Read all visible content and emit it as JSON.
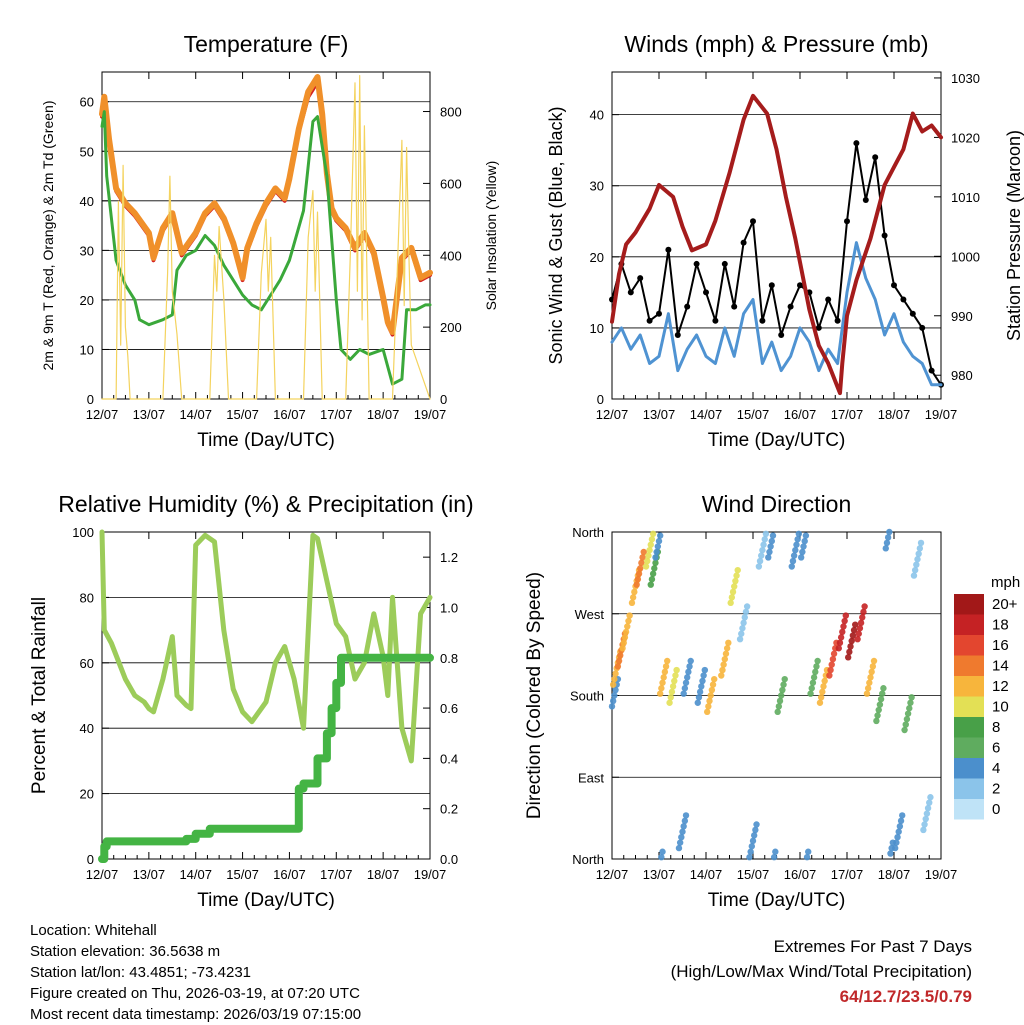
{
  "chart_data": [
    {
      "type": "line",
      "title": "Temperature (F)",
      "xlabel": "Time (Day/UTC)",
      "ylabel": "2m & 9m T (Red, Orange) & 2m Td (Green)",
      "ylabel_right": "Solar Insolation (Yellow)",
      "x_ticks": [
        "12/07",
        "13/07",
        "14/07",
        "15/07",
        "16/07",
        "17/07",
        "18/07",
        "19/07"
      ],
      "ylim": [
        0,
        66
      ],
      "yticks": [
        0,
        10,
        20,
        30,
        40,
        50,
        60
      ],
      "ylim_right": [
        0,
        910
      ],
      "yticks_right": [
        0,
        200,
        400,
        600,
        800
      ],
      "grid": true,
      "series": [
        {
          "name": "2m T",
          "color": "#d42222",
          "axis": "left",
          "x": [
            0,
            0.05,
            0.15,
            0.3,
            0.5,
            0.7,
            1.0,
            1.1,
            1.3,
            1.5,
            1.7,
            1.85,
            2.0,
            2.2,
            2.4,
            2.6,
            2.8,
            3.0,
            3.1,
            3.3,
            3.5,
            3.7,
            3.9,
            4.0,
            4.2,
            4.4,
            4.6,
            4.7,
            4.8,
            4.9,
            5.0,
            5.2,
            5.4,
            5.6,
            5.8,
            6.0,
            6.1,
            6.2,
            6.4,
            6.6,
            6.8,
            7.0
          ],
          "values": [
            57,
            60,
            52,
            42,
            39,
            37,
            33,
            28,
            34,
            37,
            29,
            31,
            33,
            37,
            39,
            36,
            31,
            24,
            30,
            35,
            39,
            42,
            40,
            44,
            54,
            61,
            64,
            57,
            45,
            38,
            36,
            34,
            30,
            33,
            29,
            20,
            15,
            13,
            28,
            30,
            24,
            25
          ]
        },
        {
          "name": "9m T",
          "color": "#f0902a",
          "axis": "left",
          "x": [
            0,
            0.05,
            0.15,
            0.3,
            0.5,
            0.7,
            1.0,
            1.1,
            1.3,
            1.5,
            1.7,
            1.85,
            2.0,
            2.2,
            2.4,
            2.6,
            2.8,
            3.0,
            3.1,
            3.3,
            3.5,
            3.7,
            3.9,
            4.0,
            4.2,
            4.4,
            4.6,
            4.7,
            4.8,
            4.9,
            5.0,
            5.2,
            5.4,
            5.6,
            5.8,
            6.0,
            6.1,
            6.2,
            6.4,
            6.6,
            6.8,
            7.0
          ],
          "values": [
            57.5,
            61,
            52.5,
            42.5,
            39.5,
            37.5,
            33.5,
            28.5,
            34.5,
            37.5,
            29.5,
            31.5,
            33.5,
            37.5,
            39.5,
            36.5,
            31.5,
            24.5,
            30.5,
            35.5,
            39.5,
            42.5,
            40.5,
            44.5,
            54.5,
            62,
            65,
            57.5,
            45.5,
            38.5,
            36.5,
            34.5,
            30.5,
            33.5,
            29.5,
            20.5,
            15.5,
            13.5,
            28.5,
            30.5,
            24.5,
            25.5
          ]
        },
        {
          "name": "2m Td",
          "color": "#3aa83a",
          "axis": "left",
          "x": [
            0,
            0.05,
            0.1,
            0.3,
            0.5,
            0.7,
            0.8,
            1.0,
            1.3,
            1.5,
            1.6,
            1.8,
            2.0,
            2.2,
            2.4,
            2.6,
            2.8,
            3.0,
            3.2,
            3.4,
            3.6,
            3.8,
            4.0,
            4.3,
            4.5,
            4.6,
            4.8,
            5.0,
            5.1,
            5.3,
            5.5,
            5.7,
            6.0,
            6.2,
            6.4,
            6.5,
            6.7,
            6.9,
            7.0
          ],
          "values": [
            55,
            58,
            45,
            28,
            23,
            20,
            16,
            15,
            16,
            17,
            26,
            29,
            30,
            33,
            31,
            27,
            24,
            21,
            19,
            18,
            21,
            24,
            28,
            38,
            56,
            57,
            45,
            20,
            10,
            8,
            10,
            9,
            10,
            3,
            4,
            18,
            18,
            19,
            19
          ]
        },
        {
          "name": "Solar Insolation",
          "color": "#f4d35e",
          "axis": "right",
          "x": [
            0,
            0.3,
            0.35,
            0.4,
            0.45,
            0.5,
            0.55,
            0.6,
            1.3,
            1.4,
            1.45,
            1.5,
            1.6,
            1.7,
            2.3,
            2.4,
            2.45,
            2.5,
            2.6,
            2.7,
            3.3,
            3.4,
            3.5,
            3.55,
            3.6,
            3.7,
            4.3,
            4.4,
            4.5,
            4.55,
            4.6,
            4.7,
            5.2,
            5.3,
            5.4,
            5.45,
            5.5,
            5.55,
            5.6,
            5.7,
            6.2,
            6.3,
            6.4,
            6.45,
            6.5,
            6.55,
            6.6,
            7.0
          ],
          "values": [
            0,
            0,
            550,
            150,
            650,
            200,
            120,
            0,
            0,
            350,
            620,
            300,
            180,
            0,
            0,
            400,
            300,
            480,
            280,
            0,
            0,
            350,
            500,
            300,
            450,
            0,
            0,
            450,
            580,
            300,
            520,
            0,
            0,
            400,
            880,
            300,
            900,
            220,
            760,
            0,
            0,
            350,
            720,
            260,
            700,
            400,
            150,
            0
          ]
        }
      ]
    },
    {
      "type": "line",
      "title": "Winds (mph) & Pressure (mb)",
      "xlabel": "Time (Day/UTC)",
      "ylabel": "Sonic Wind & Gust (Blue, Black)",
      "ylabel_right": "Station Pressure (Maroon)",
      "x_ticks": [
        "12/07",
        "13/07",
        "14/07",
        "15/07",
        "16/07",
        "17/07",
        "18/07",
        "19/07"
      ],
      "ylim": [
        0,
        46
      ],
      "yticks": [
        0,
        10,
        20,
        30,
        40
      ],
      "ylim_right": [
        976,
        1031
      ],
      "yticks_right": [
        980,
        990,
        1000,
        1010,
        1020,
        1030
      ],
      "grid": true,
      "series": [
        {
          "name": "Sonic Wind",
          "color": "#4f93d2",
          "axis": "left",
          "x": [
            0,
            0.2,
            0.4,
            0.6,
            0.8,
            1.0,
            1.2,
            1.4,
            1.6,
            1.8,
            2.0,
            2.2,
            2.4,
            2.6,
            2.8,
            3.0,
            3.2,
            3.4,
            3.6,
            3.8,
            4.0,
            4.2,
            4.4,
            4.6,
            4.8,
            5.0,
            5.2,
            5.4,
            5.6,
            5.8,
            6.0,
            6.2,
            6.4,
            6.6,
            6.8,
            7.0
          ],
          "values": [
            8,
            10,
            7,
            9,
            5,
            6,
            12,
            4,
            7,
            9,
            6,
            5,
            10,
            6,
            12,
            14,
            5,
            8,
            4,
            6,
            10,
            8,
            4,
            7,
            5,
            15,
            22,
            17,
            14,
            9,
            12,
            8,
            6,
            5,
            2,
            2
          ]
        },
        {
          "name": "Gust",
          "color": "#000000",
          "axis": "left",
          "x": [
            0,
            0.2,
            0.4,
            0.6,
            0.8,
            1.0,
            1.2,
            1.4,
            1.6,
            1.8,
            2.0,
            2.2,
            2.4,
            2.6,
            2.8,
            3.0,
            3.2,
            3.4,
            3.6,
            3.8,
            4.0,
            4.2,
            4.4,
            4.6,
            4.8,
            5.0,
            5.2,
            5.4,
            5.6,
            5.8,
            6.0,
            6.2,
            6.4,
            6.6,
            6.8,
            7.0
          ],
          "values": [
            14,
            19,
            15,
            17,
            11,
            12,
            21,
            9,
            13,
            19,
            15,
            11,
            19,
            13,
            22,
            25,
            11,
            16,
            9,
            13,
            16,
            15,
            10,
            14,
            11,
            25,
            36,
            28,
            34,
            23,
            16,
            14,
            12,
            10,
            4,
            2
          ]
        },
        {
          "name": "Station Pressure",
          "color": "#a51c1c",
          "axis": "right",
          "x": [
            0,
            0.15,
            0.3,
            0.5,
            0.8,
            1.0,
            1.3,
            1.5,
            1.7,
            2.0,
            2.2,
            2.5,
            2.8,
            3.0,
            3.3,
            3.5,
            3.7,
            3.9,
            4.0,
            4.2,
            4.4,
            4.6,
            4.8,
            4.85,
            4.9,
            5.0,
            5.2,
            5.5,
            5.8,
            6.0,
            6.2,
            6.4,
            6.6,
            6.8,
            7.0
          ],
          "values": [
            989,
            997,
            1002,
            1004,
            1008,
            1012,
            1010,
            1005,
            1001,
            1002,
            1006,
            1014,
            1023,
            1027,
            1024,
            1018,
            1010,
            1003,
            999,
            991,
            985,
            982,
            978,
            977,
            982,
            990,
            996,
            1003,
            1012,
            1015,
            1018,
            1024,
            1021,
            1022,
            1020
          ]
        }
      ]
    },
    {
      "type": "line",
      "title": "Relative Humidity (%) & Precipitation (in)",
      "xlabel": "Time (Day/UTC)",
      "ylabel": "Percent & Total Rainfall",
      "x_ticks": [
        "12/07",
        "13/07",
        "14/07",
        "15/07",
        "16/07",
        "17/07",
        "18/07",
        "19/07"
      ],
      "ylim": [
        0,
        100
      ],
      "yticks": [
        0,
        20,
        40,
        60,
        80,
        100
      ],
      "ylim_right": [
        0,
        1.3
      ],
      "yticks_right": [
        0.0,
        0.2,
        0.4,
        0.6,
        0.8,
        1.0,
        1.2
      ],
      "grid": true,
      "series": [
        {
          "name": "Relative Humidity",
          "color": "#9ccc5a",
          "axis": "left",
          "x": [
            0,
            0.05,
            0.2,
            0.5,
            0.7,
            0.9,
            1.0,
            1.1,
            1.3,
            1.5,
            1.6,
            1.8,
            1.9,
            2.0,
            2.2,
            2.4,
            2.6,
            2.8,
            3.0,
            3.2,
            3.5,
            3.7,
            3.9,
            4.1,
            4.3,
            4.5,
            4.6,
            4.8,
            5.0,
            5.2,
            5.4,
            5.6,
            5.8,
            6.0,
            6.1,
            6.2,
            6.4,
            6.6,
            6.8,
            7.0
          ],
          "values": [
            100,
            70,
            66,
            55,
            50,
            48,
            46,
            45,
            55,
            68,
            50,
            47,
            46,
            96,
            99,
            97,
            70,
            52,
            45,
            42,
            48,
            60,
            65,
            55,
            40,
            99,
            98,
            85,
            72,
            68,
            55,
            60,
            75,
            62,
            50,
            80,
            40,
            30,
            75,
            80
          ]
        },
        {
          "name": "Total Precipitation",
          "color": "#44b444",
          "axis": "right",
          "x": [
            0,
            0.05,
            0.1,
            1.6,
            1.8,
            2.0,
            2.3,
            3.0,
            4.0,
            4.2,
            4.3,
            4.5,
            4.6,
            4.8,
            4.9,
            5.0,
            5.1,
            7.0
          ],
          "values": [
            0,
            0.05,
            0.07,
            0.07,
            0.08,
            0.1,
            0.12,
            0.12,
            0.12,
            0.28,
            0.3,
            0.3,
            0.4,
            0.5,
            0.6,
            0.7,
            0.8,
            0.8
          ]
        }
      ]
    },
    {
      "type": "scatter",
      "title": "Wind Direction",
      "xlabel": "Time (Day/UTC)",
      "ylabel": "Direction (Colored By Speed)",
      "x_ticks": [
        "12/07",
        "13/07",
        "14/07",
        "15/07",
        "16/07",
        "17/07",
        "18/07",
        "19/07"
      ],
      "y_ticks": [
        "North",
        "East",
        "South",
        "West",
        "North"
      ],
      "ylim": [
        0,
        360
      ],
      "grid": true,
      "legend_title": "mph",
      "legend_labels": [
        "0",
        "2",
        "4",
        "6",
        "8",
        "10",
        "12",
        "14",
        "16",
        "18",
        "20+"
      ],
      "legend_colors": [
        "#bfe3f7",
        "#8bc4ea",
        "#4b8fcc",
        "#5fac5f",
        "#48a048",
        "#e3e055",
        "#f7b53c",
        "#ef7a2e",
        "#e3462f",
        "#c52224",
        "#a21818"
      ],
      "points": [
        {
          "x": 0.05,
          "dir": 180,
          "speed": 4
        },
        {
          "x": 0.1,
          "dir": 210,
          "speed": 12
        },
        {
          "x": 0.2,
          "dir": 230,
          "speed": 14
        },
        {
          "x": 0.3,
          "dir": 250,
          "speed": 11
        },
        {
          "x": 0.5,
          "dir": 300,
          "speed": 12
        },
        {
          "x": 0.6,
          "dir": 320,
          "speed": 13
        },
        {
          "x": 0.8,
          "dir": 340,
          "speed": 10
        },
        {
          "x": 0.9,
          "dir": 320,
          "speed": 8
        },
        {
          "x": 1.0,
          "dir": 350,
          "speed": 4
        },
        {
          "x": 1.1,
          "dir": 200,
          "speed": 12
        },
        {
          "x": 1.3,
          "dir": 190,
          "speed": 10
        },
        {
          "x": 1.5,
          "dir": 30,
          "speed": 3
        },
        {
          "x": 1.6,
          "dir": 200,
          "speed": 4
        },
        {
          "x": 1.9,
          "dir": 190,
          "speed": 4
        },
        {
          "x": 2.1,
          "dir": 180,
          "speed": 12
        },
        {
          "x": 2.4,
          "dir": 220,
          "speed": 12
        },
        {
          "x": 2.6,
          "dir": 300,
          "speed": 9
        },
        {
          "x": 2.8,
          "dir": 260,
          "speed": 2
        },
        {
          "x": 3.0,
          "dir": 20,
          "speed": 4
        },
        {
          "x": 3.2,
          "dir": 340,
          "speed": 2
        },
        {
          "x": 3.4,
          "dir": 350,
          "speed": 3
        },
        {
          "x": 3.6,
          "dir": 180,
          "speed": 6
        },
        {
          "x": 3.9,
          "dir": 340,
          "speed": 3
        },
        {
          "x": 4.1,
          "dir": 350,
          "speed": 4
        },
        {
          "x": 4.3,
          "dir": 200,
          "speed": 6
        },
        {
          "x": 4.5,
          "dir": 190,
          "speed": 12
        },
        {
          "x": 4.7,
          "dir": 220,
          "speed": 15
        },
        {
          "x": 4.9,
          "dir": 250,
          "speed": 18
        },
        {
          "x": 5.1,
          "dir": 240,
          "speed": 20
        },
        {
          "x": 5.3,
          "dir": 260,
          "speed": 17
        },
        {
          "x": 5.5,
          "dir": 200,
          "speed": 12
        },
        {
          "x": 5.7,
          "dir": 170,
          "speed": 6
        },
        {
          "x": 5.9,
          "dir": 360,
          "speed": 4
        },
        {
          "x": 6.1,
          "dir": 30,
          "speed": 4
        },
        {
          "x": 6.3,
          "dir": 160,
          "speed": 6
        },
        {
          "x": 6.5,
          "dir": 330,
          "speed": 2
        },
        {
          "x": 6.7,
          "dir": 50,
          "speed": 2
        }
      ]
    }
  ],
  "info": {
    "location": "Location: Whitehall",
    "elevation": "Station elevation: 36.5638 m",
    "latlon": "Station lat/lon: 43.4851; -73.4231",
    "created": "Figure created on Thu, 2026-03-19, at 07:20 UTC",
    "recent": "Most recent data timestamp: 2026/03/19 07:15:00"
  },
  "extremes": {
    "title": "Extremes For Past 7 Days",
    "subtitle": "(High/Low/Max Wind/Total Precipitation)",
    "values": "64/12.7/23.5/0.79"
  }
}
